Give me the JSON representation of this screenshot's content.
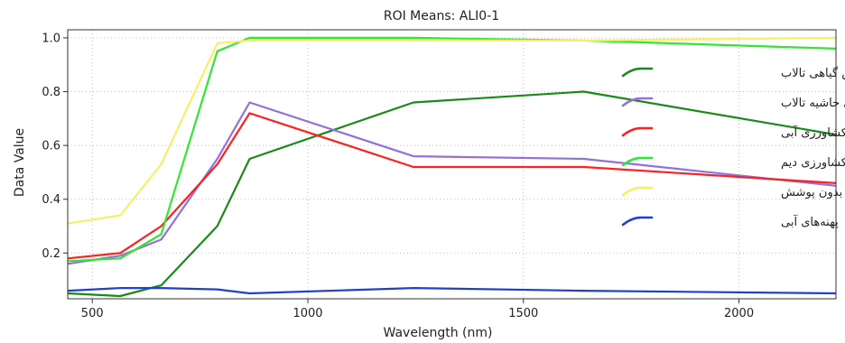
{
  "chart_data": {
    "type": "line",
    "title": "ROI Means: ALI0-1",
    "xlabel": "Wavelength (nm)",
    "ylabel": "Data Value",
    "xlim": [
      443,
      2225
    ],
    "ylim": [
      0.03,
      1.03
    ],
    "xticks": [
      500,
      1000,
      1500,
      2000
    ],
    "yticks": [
      0.2,
      0.4,
      0.6,
      0.8,
      1.0
    ],
    "xtick_labels": [
      "500",
      "1000",
      "1500",
      "2000"
    ],
    "ytick_labels": [
      "0.2",
      "0.4",
      "0.6",
      "0.8",
      "1.0"
    ],
    "legend_position": "right",
    "series": [
      {
        "name": "پوشش گیاهی تالاب",
        "color": "#1a8a1a",
        "x": [
          443,
          565,
          660,
          790,
          865,
          1245,
          1640,
          2225
        ],
        "y": [
          0.05,
          0.04,
          0.08,
          0.3,
          0.55,
          0.76,
          0.8,
          0.64
        ]
      },
      {
        "name": "پوشش گیاهی حاشیه تالاب",
        "color": "#9370db",
        "x": [
          443,
          565,
          660,
          790,
          865,
          1245,
          1640,
          2225
        ],
        "y": [
          0.16,
          0.19,
          0.25,
          0.55,
          0.76,
          0.56,
          0.55,
          0.45
        ]
      },
      {
        "name": "اراضی کشاورزی آبی",
        "color": "#ff2020",
        "x": [
          443,
          565,
          660,
          790,
          865,
          1245,
          1640,
          2225
        ],
        "y": [
          0.18,
          0.2,
          0.3,
          0.53,
          0.72,
          0.52,
          0.52,
          0.46
        ]
      },
      {
        "name": "اراضی کشاورزی دیم",
        "color": "#33e633",
        "x": [
          443,
          565,
          660,
          790,
          865,
          1245,
          1640,
          2225
        ],
        "y": [
          0.17,
          0.18,
          0.27,
          0.95,
          1.0,
          1.0,
          0.99,
          0.96
        ]
      },
      {
        "name": "خاک بدون پوشش",
        "color": "#f5f065",
        "x": [
          443,
          565,
          660,
          790,
          865,
          1245,
          1640,
          2225
        ],
        "y": [
          0.31,
          0.34,
          0.53,
          0.98,
          0.99,
          0.99,
          0.99,
          1.0
        ]
      },
      {
        "name": "پهنه‌های آبی",
        "color": "#1f3fd6",
        "x": [
          443,
          565,
          660,
          790,
          865,
          1245,
          1640,
          2225
        ],
        "y": [
          0.06,
          0.07,
          0.07,
          0.065,
          0.05,
          0.07,
          0.06,
          0.05
        ]
      }
    ]
  }
}
